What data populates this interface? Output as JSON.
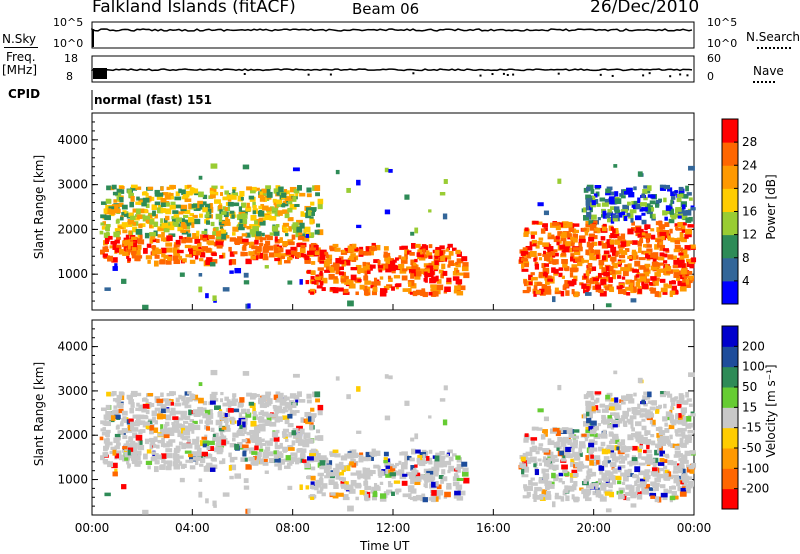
{
  "header": {
    "site": "Falkland Islands (fitACF)",
    "beam": "Beam 06",
    "date": "26/Dec/2010"
  },
  "strip_labels": {
    "nsky": "N.Sky",
    "nsearch": "N.Search",
    "nsky_ticks": [
      "10^5",
      "10^0"
    ],
    "nsearch_ticks": [
      "10^5",
      "10^0"
    ],
    "freq": "Freq.",
    "freq_unit": "[MHz]",
    "freq_ticks": [
      "18",
      "8"
    ],
    "nave": "Nave",
    "nave_ticks": [
      "60",
      "0"
    ],
    "cpid": "CPID",
    "cpid_value": "normal (fast) 151"
  },
  "chart_data": [
    {
      "type": "heatmap",
      "panel": "power",
      "ylabel": "Slant Range [km]",
      "yticks": [
        "4000",
        "3000",
        "2000",
        "1000"
      ],
      "y_values": [
        4000,
        3000,
        2000,
        1000
      ],
      "ylim": [
        200,
        4600
      ],
      "xlim": [
        0,
        24
      ],
      "colorbar_label": "Power [dB]",
      "colorbar_ticks": [
        "28",
        "24",
        "20",
        "16",
        "12",
        "8",
        "4"
      ],
      "colorbar_colors": [
        "#ff0000",
        "#ff6600",
        "#ff9900",
        "#ffcc00",
        "#99cc33",
        "#2e8b57",
        "#336699",
        "#0000ff"
      ],
      "data_gap_hours": [
        14.9,
        16.9
      ],
      "echo_regions": [
        {
          "t0": 0.3,
          "t1": 8.5,
          "r0": 1300,
          "r1": 1900,
          "level": "high"
        },
        {
          "t0": 8.5,
          "t1": 14.8,
          "r0": 600,
          "r1": 1700,
          "level": "high"
        },
        {
          "t0": 17.0,
          "t1": 24.0,
          "r0": 600,
          "r1": 2200,
          "level": "high"
        },
        {
          "t0": 0.3,
          "t1": 9.0,
          "r0": 1900,
          "r1": 3000,
          "level": "medium"
        },
        {
          "t0": 19.5,
          "t1": 24.0,
          "r0": 2000,
          "r1": 3000,
          "level": "low"
        }
      ]
    },
    {
      "type": "heatmap",
      "panel": "velocity",
      "ylabel": "Slant Range [km]",
      "yticks": [
        "4000",
        "3000",
        "2000",
        "1000"
      ],
      "y_values": [
        4000,
        3000,
        2000,
        1000
      ],
      "ylim": [
        200,
        4600
      ],
      "xlim": [
        0,
        24
      ],
      "xlabel": "Time UT",
      "xticks": [
        "00:00",
        "04:00",
        "08:00",
        "12:00",
        "16:00",
        "20:00",
        "00:00"
      ],
      "x_values": [
        0,
        4,
        8,
        12,
        16,
        20,
        24
      ],
      "colorbar_label": "Velocity [m s⁻¹]",
      "colorbar_ticks": [
        "200",
        "100",
        "50",
        "15",
        "-15",
        "-50",
        "-100",
        "-200"
      ],
      "colorbar_colors": [
        "#0000cc",
        "#1e4d9b",
        "#2e8b57",
        "#66cc33",
        "#c8c8c8",
        "#ffcc00",
        "#ff9900",
        "#ff6600",
        "#ff0000"
      ],
      "data_gap_hours": [
        14.9,
        16.9
      ]
    }
  ]
}
